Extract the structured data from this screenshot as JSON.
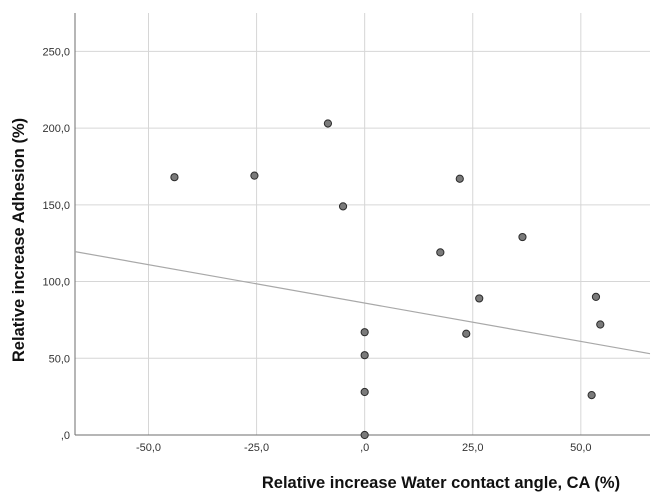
{
  "chart_data": {
    "type": "scatter",
    "title": "",
    "xlabel": "Relative increase Water contact angle, CA (%)",
    "ylabel": "Relative increase Adhesion (%)",
    "xlim": [
      -67,
      66
    ],
    "ylim": [
      0,
      275
    ],
    "x_ticks": [
      -50,
      -25,
      0,
      25,
      50
    ],
    "x_tick_labels": [
      "-50,0",
      "-25,0",
      ",0",
      "25,0",
      "50,0"
    ],
    "y_ticks": [
      0,
      50,
      100,
      150,
      200,
      250
    ],
    "y_tick_labels": [
      ",0",
      "50,0",
      "100,0",
      "150,0",
      "200,0",
      "250,0"
    ],
    "grid": true,
    "legend": "none",
    "colors": {
      "point_fill": "#7a7a7a",
      "point_stroke": "#2b2b2b",
      "fit_line": "#a8a8a8",
      "grid": "#d6d6d6"
    },
    "points": [
      {
        "x": -44.0,
        "y": 168
      },
      {
        "x": -25.5,
        "y": 169
      },
      {
        "x": -8.5,
        "y": 203
      },
      {
        "x": -5.0,
        "y": 149
      },
      {
        "x": 0.0,
        "y": 67
      },
      {
        "x": 0.0,
        "y": 52
      },
      {
        "x": 0.0,
        "y": 28
      },
      {
        "x": 0.0,
        "y": 0
      },
      {
        "x": 17.5,
        "y": 119
      },
      {
        "x": 22.0,
        "y": 167
      },
      {
        "x": 23.5,
        "y": 66
      },
      {
        "x": 26.5,
        "y": 89
      },
      {
        "x": 36.5,
        "y": 129
      },
      {
        "x": 52.5,
        "y": 26
      },
      {
        "x": 53.5,
        "y": 90
      },
      {
        "x": 54.5,
        "y": 72
      }
    ],
    "fit_line": {
      "type": "linear",
      "x": [
        -67,
        66
      ],
      "y": [
        119.5,
        53.0
      ]
    }
  }
}
